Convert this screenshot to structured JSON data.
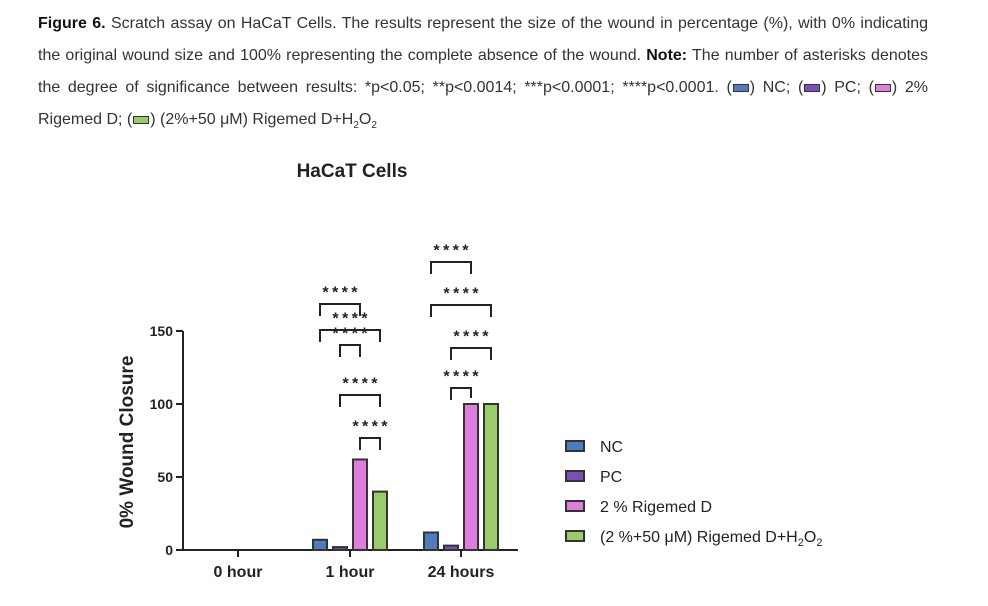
{
  "caption": {
    "fig_label": "Figure 6.",
    "text1": "Scratch assay on HaCaT Cells. The results represent the size of the wound in percentage (%), with 0% indicating the original wound size and 100% representing the complete absence of the wound.",
    "note_label": "Note:",
    "text2": "The number of asterisks denotes the degree of significance between results: *p<0.05; **p<0.0014; ***p<0.0001; ****p<0.0001. (",
    "nc": ") NC; (",
    "pc": ") PC; (",
    "rig": ") 2% Rigemed D; (",
    "rig_h2o2_pre": ") (2%+50 μM) Rigemed D+H",
    "sub1": "2",
    "o": "O",
    "sub2": "2"
  },
  "chart_data": {
    "type": "bar",
    "title": "HaCaT Cells",
    "ylabel": "0% Wound Closure",
    "xlabel": "",
    "categories": [
      "0 hour",
      "1 hour",
      "24 hours"
    ],
    "ylim": [
      0,
      150
    ],
    "yticks": [
      0,
      50,
      100,
      150
    ],
    "series": [
      {
        "name": "NC",
        "values": [
          0,
          7,
          12
        ],
        "color": "#4f7bbf"
      },
      {
        "name": "PC",
        "values": [
          0,
          2,
          3
        ],
        "color": "#7b4fb8"
      },
      {
        "name": "2 % Rigemed D",
        "values": [
          0,
          62,
          100
        ],
        "color": "#e07ee0"
      },
      {
        "name": "(2 %+50 μM) Rigemed D+H2O2",
        "values": [
          0,
          40,
          100
        ],
        "color": "#9acd6a"
      }
    ],
    "legend": {
      "position": "right",
      "labels": [
        "NC",
        "PC",
        "2 % Rigemed D",
        "(2 %+50 μM) Rigemed D+H"
      ],
      "sub1": "2",
      "o": "O",
      "sub2": "2"
    },
    "significance": [
      {
        "category": "1 hour",
        "from": "NC",
        "to": "2 % Rigemed D",
        "label": "****"
      },
      {
        "category": "1 hour",
        "from": "NC",
        "to": "(2 %+50 μM) Rigemed D+H2O2",
        "label": "****"
      },
      {
        "category": "1 hour",
        "from": "PC",
        "to": "2 % Rigemed D",
        "label": "****"
      },
      {
        "category": "1 hour",
        "from": "PC",
        "to": "(2 %+50 μM) Rigemed D+H2O2",
        "label": "****"
      },
      {
        "category": "1 hour",
        "from": "2 % Rigemed D",
        "to": "(2 %+50 μM) Rigemed D+H2O2",
        "label": "****"
      },
      {
        "category": "24 hours",
        "from": "NC",
        "to": "2 % Rigemed D",
        "label": "****"
      },
      {
        "category": "24 hours",
        "from": "NC",
        "to": "(2 %+50 μM) Rigemed D+H2O2",
        "label": "****"
      },
      {
        "category": "24 hours",
        "from": "PC",
        "to": "2 % Rigemed D",
        "label": "****"
      },
      {
        "category": "24 hours",
        "from": "PC",
        "to": "(2 %+50 μM) Rigemed D+H2O2",
        "label": "****"
      }
    ]
  }
}
